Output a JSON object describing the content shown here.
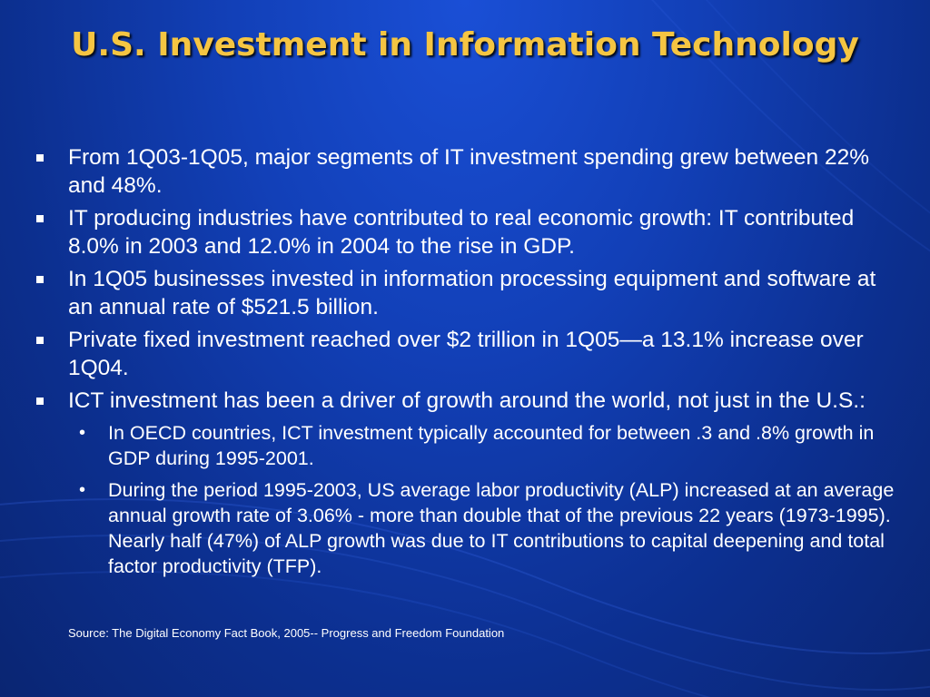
{
  "slide": {
    "title": "U.S. Investment in Information Technology",
    "bullets": [
      "From 1Q03-1Q05, major segments of IT investment spending grew between 22% and 48%.",
      "IT producing industries have contributed to real economic growth:  IT contributed 8.0% in 2003 and 12.0% in 2004 to the rise in GDP.",
      "In 1Q05 businesses invested in information processing equipment and software at an annual rate of $521.5 billion.",
      "Private fixed investment reached over $2 trillion in 1Q05—a 13.1% increase over 1Q04.",
      "ICT investment has been a driver of growth around the world, not just in the U.S.:"
    ],
    "subbullets": [
      "In OECD countries, ICT investment typically accounted for between .3 and .8% growth in GDP during 1995-2001.",
      "During the period 1995-2003, US average labor productivity (ALP) increased at an average annual growth rate of 3.06% - more than double that of the previous 22 years (1973-1995).  Nearly half (47%) of ALP growth was due to IT contributions to capital deepening and total factor productivity (TFP)."
    ],
    "sub_marker": "•",
    "source": "Source:  The Digital Economy Fact Book, 2005-- Progress and Freedom Foundation"
  },
  "colors": {
    "title": "#f5c542",
    "text": "#ffffff",
    "background": "#1240b8"
  }
}
